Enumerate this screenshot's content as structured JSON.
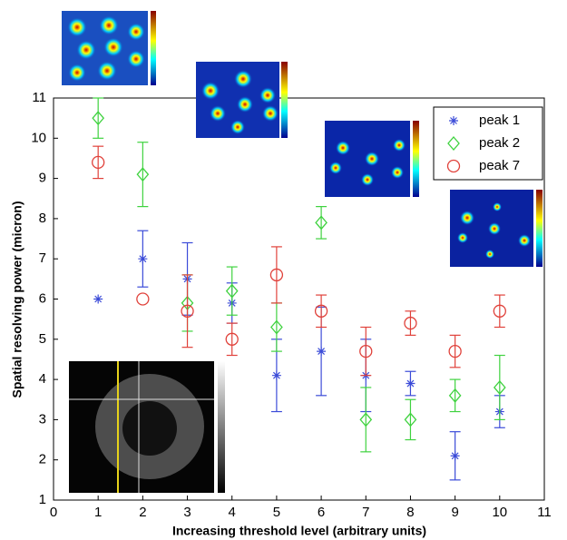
{
  "chart_data": {
    "type": "scatter",
    "x_label": "Increasing threshold level (arbitrary units)",
    "y_label": "Spatial resolving power (micron)",
    "xlim": [
      0,
      11
    ],
    "xticks": [
      0,
      1,
      2,
      3,
      4,
      5,
      6,
      7,
      8,
      9,
      10,
      11
    ],
    "ylim": [
      1,
      11
    ],
    "yticks": [
      1,
      2,
      3,
      4,
      5,
      6,
      7,
      8,
      9,
      10,
      11
    ],
    "legend": "top-right",
    "series": [
      {
        "name": "peak 1",
        "color": "#3b4bd8",
        "marker": "star",
        "x": [
          1,
          2,
          3,
          4,
          5,
          6,
          7,
          8,
          9,
          10
        ],
        "values": [
          6.0,
          7.0,
          6.5,
          5.9,
          4.1,
          4.7,
          4.1,
          3.9,
          2.1,
          3.2
        ],
        "errors": [
          null,
          0.7,
          0.9,
          0.5,
          0.9,
          1.1,
          0.9,
          0.3,
          0.6,
          0.4
        ]
      },
      {
        "name": "peak 2",
        "color": "#3fd23f",
        "marker": "diamond",
        "x": [
          1,
          2,
          3,
          4,
          5,
          6,
          7,
          8,
          9,
          10
        ],
        "values": [
          10.5,
          9.1,
          5.9,
          6.2,
          5.3,
          7.9,
          3.0,
          3.0,
          3.6,
          3.8
        ],
        "errors": [
          0.5,
          0.8,
          0.7,
          0.6,
          0.6,
          0.4,
          0.8,
          0.5,
          0.4,
          0.8
        ]
      },
      {
        "name": "peak 7",
        "color": "#e0413a",
        "marker": "circle",
        "x": [
          1,
          2,
          3,
          4,
          5,
          6,
          7,
          8,
          9,
          10
        ],
        "values": [
          9.4,
          6.0,
          5.7,
          5.0,
          6.6,
          5.7,
          4.7,
          5.4,
          4.7,
          5.7
        ],
        "errors": [
          0.4,
          null,
          0.9,
          0.4,
          0.7,
          0.4,
          0.6,
          0.3,
          0.4,
          0.4
        ]
      }
    ]
  }
}
